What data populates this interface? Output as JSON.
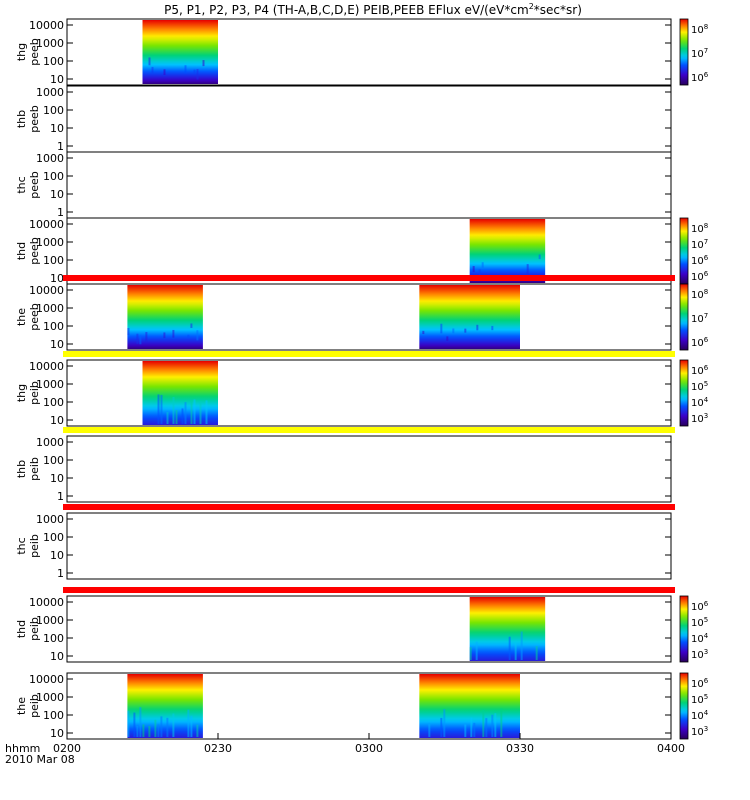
{
  "chart_data": {
    "type": "heatmap",
    "title": "P5, P1, P2, P3, P4 (TH-A,B,C,D,E) PEIB,PEEB EFlux eV/(eV*cm",
    "title_sup": "2",
    "title_tail": "*sec*sr)",
    "x_axis": {
      "ticks": [
        "0200",
        "0230",
        "0300",
        "0330",
        "0400"
      ],
      "row1_label": "hhmm",
      "row2_label": "2010 Mar 08",
      "range_minutes": [
        0,
        120
      ]
    },
    "panels": [
      {
        "label": [
          "thg",
          "peeb"
        ],
        "yticks": [
          "10000",
          "1000",
          "100",
          "10"
        ],
        "colorbar": true,
        "cbar_ticks": [
          "10^8",
          "10^7",
          "10^6"
        ],
        "kind": "electron",
        "blocks": [
          {
            "t0": 15,
            "t1": 30
          }
        ],
        "status_bar": null
      },
      {
        "label": [
          "thb",
          "peeb"
        ],
        "yticks": [
          "1000",
          "100",
          "10",
          "1"
        ],
        "colorbar": false,
        "cbar_ticks": [],
        "kind": "none",
        "blocks": [],
        "status_bar": null
      },
      {
        "label": [
          "thc",
          "peeb"
        ],
        "yticks": [
          "1000",
          "100",
          "10",
          "1"
        ],
        "colorbar": false,
        "cbar_ticks": [],
        "kind": "none",
        "blocks": [],
        "status_bar": null
      },
      {
        "label": [
          "thd",
          "peeb"
        ],
        "yticks": [
          "10000",
          "1000",
          "100",
          "10"
        ],
        "colorbar": true,
        "cbar_ticks": [
          "10^8",
          "10^7",
          "10^6",
          "10^6"
        ],
        "kind": "electron",
        "blocks": [
          {
            "t0": 80,
            "t1": 95
          }
        ],
        "status_bar": null
      },
      {
        "label": [
          "the",
          "peeb"
        ],
        "yticks": [
          "10000",
          "1000",
          "100",
          "10"
        ],
        "colorbar": true,
        "cbar_ticks": [
          "10^8",
          "10^7",
          "10^6"
        ],
        "kind": "electron",
        "blocks": [
          {
            "t0": 12,
            "t1": 27
          },
          {
            "t0": 70,
            "t1": 90
          }
        ],
        "status_bar": "red"
      },
      {
        "label": [
          "thg",
          "peib"
        ],
        "yticks": [
          "10000",
          "1000",
          "100",
          "10"
        ],
        "colorbar": true,
        "cbar_ticks": [
          "10^6",
          "10^5",
          "10^4",
          "10^3"
        ],
        "kind": "ion",
        "blocks": [
          {
            "t0": 15,
            "t1": 30
          }
        ],
        "status_bar": "yellow"
      },
      {
        "label": [
          "thb",
          "peib"
        ],
        "yticks": [
          "1000",
          "100",
          "10",
          "1"
        ],
        "colorbar": false,
        "cbar_ticks": [],
        "kind": "none",
        "blocks": [],
        "status_bar": "yellow"
      },
      {
        "label": [
          "thc",
          "peib"
        ],
        "yticks": [
          "1000",
          "100",
          "10",
          "1"
        ],
        "colorbar": false,
        "cbar_ticks": [],
        "kind": "none",
        "blocks": [],
        "status_bar": "red"
      },
      {
        "label": [
          "thd",
          "peib"
        ],
        "yticks": [
          "10000",
          "1000",
          "100",
          "10"
        ],
        "colorbar": true,
        "cbar_ticks": [
          "10^6",
          "10^5",
          "10^4",
          "10^3"
        ],
        "kind": "ion",
        "blocks": [
          {
            "t0": 80,
            "t1": 95
          }
        ],
        "status_bar": "red"
      },
      {
        "label": [
          "the",
          "peib"
        ],
        "yticks": [
          "10000",
          "1000",
          "100",
          "10"
        ],
        "colorbar": true,
        "cbar_ticks": [
          "10^6",
          "10^5",
          "10^4",
          "10^3"
        ],
        "kind": "ion",
        "blocks": [
          {
            "t0": 12,
            "t1": 27
          },
          {
            "t0": 70,
            "t1": 90
          }
        ],
        "status_bar": null
      }
    ],
    "colors": {
      "red_bar": "#ff0000",
      "yellow_bar": "#ffff00"
    }
  }
}
